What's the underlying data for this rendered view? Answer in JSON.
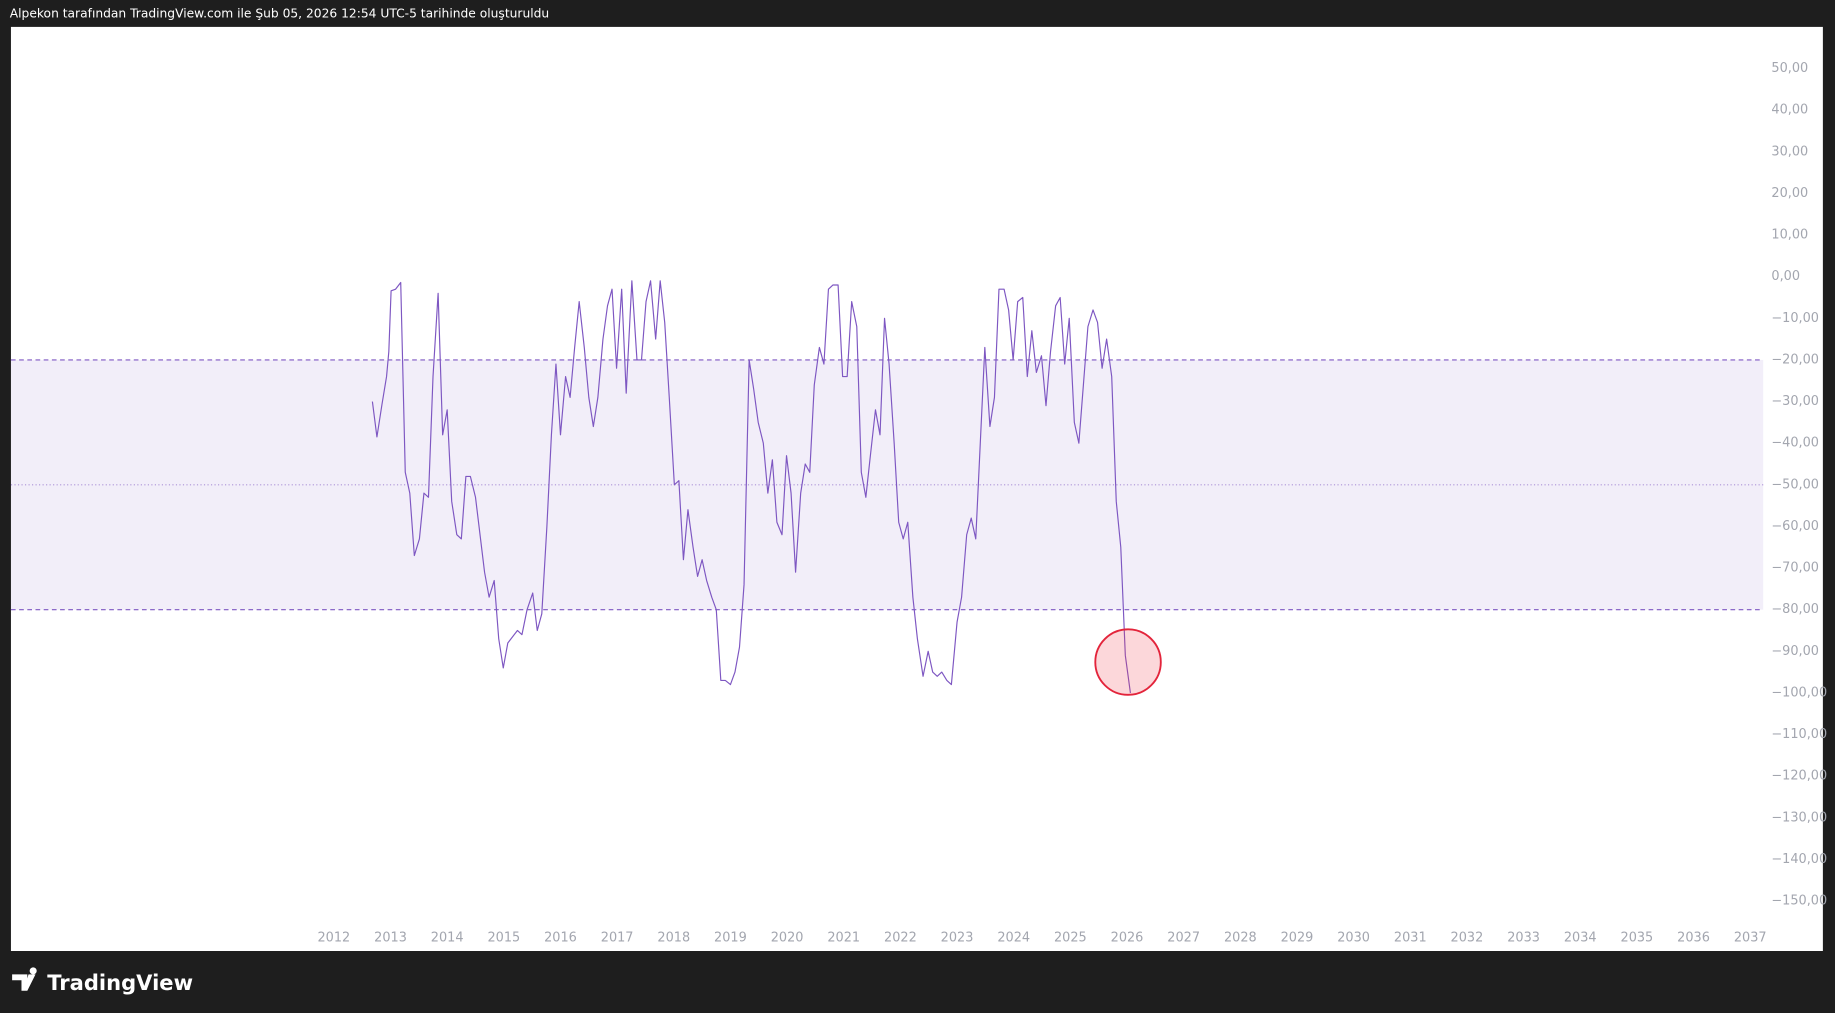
{
  "header": "Alpekon tarafından TradingView.com ile Şub 05, 2026 12:54 UTC-5 tarihinde oluşturuldu",
  "logo": "TradingView",
  "chart_data": {
    "type": "line",
    "color": "#7e57c2",
    "band_color": "#7e57c2",
    "xlim": [
      2006.3,
      2037.23
    ],
    "ylim": [
      -162,
      60
    ],
    "xticks": [
      2012,
      2013,
      2014,
      2015,
      2016,
      2017,
      2018,
      2019,
      2020,
      2021,
      2022,
      2023,
      2024,
      2025,
      2026,
      2027,
      2028,
      2029,
      2030,
      2031,
      2032,
      2033,
      2034,
      2035,
      2036,
      2037
    ],
    "yticks": [
      {
        "value": 50,
        "label": "50,00"
      },
      {
        "value": 40,
        "label": "40,00"
      },
      {
        "value": 30,
        "label": "30,00"
      },
      {
        "value": 20,
        "label": "20,00"
      },
      {
        "value": 10,
        "label": "10,00"
      },
      {
        "value": 0,
        "label": "0,00"
      },
      {
        "value": -10,
        "label": "−10,00"
      },
      {
        "value": -20,
        "label": "−20,00"
      },
      {
        "value": -30,
        "label": "−30,00"
      },
      {
        "value": -40,
        "label": "−40,00"
      },
      {
        "value": -50,
        "label": "−50,00"
      },
      {
        "value": -60,
        "label": "−60,00"
      },
      {
        "value": -70,
        "label": "−70,00"
      },
      {
        "value": -80,
        "label": "−80,00"
      },
      {
        "value": -90,
        "label": "−90,00"
      },
      {
        "value": -100,
        "label": "−100,00"
      },
      {
        "value": -110,
        "label": "−110,00"
      },
      {
        "value": -120,
        "label": "−120,00"
      },
      {
        "value": -130,
        "label": "−130,00"
      },
      {
        "value": -140,
        "label": "−140,00"
      },
      {
        "value": -150,
        "label": "−150,00"
      }
    ],
    "bands": [
      -20,
      -80
    ],
    "midline": -50,
    "x": [
      2012.68,
      2012.76,
      2012.85,
      2012.93,
      2012.97,
      2013.01,
      2013.09,
      2013.18,
      2013.26,
      2013.34,
      2013.42,
      2013.51,
      2013.59,
      2013.67,
      2013.75,
      2013.84,
      2013.92,
      2014.0,
      2014.08,
      2014.17,
      2014.25,
      2014.33,
      2014.41,
      2014.5,
      2014.66,
      2014.74,
      2014.83,
      2014.91,
      2014.99,
      2015.07,
      2015.24,
      2015.32,
      2015.41,
      2015.51,
      2015.59,
      2015.67,
      2015.76,
      2015.84,
      2015.92,
      2016.0,
      2016.09,
      2016.17,
      2016.25,
      2016.33,
      2016.42,
      2016.5,
      2016.58,
      2016.66,
      2016.75,
      2016.83,
      2016.91,
      2016.99,
      2017.08,
      2017.16,
      2017.26,
      2017.35,
      2017.43,
      2017.51,
      2017.59,
      2017.68,
      2017.76,
      2017.84,
      2017.92,
      2018.01,
      2018.09,
      2018.17,
      2018.25,
      2018.34,
      2018.42,
      2018.5,
      2018.58,
      2018.67,
      2018.75,
      2018.83,
      2018.91,
      2019.0,
      2019.08,
      2019.16,
      2019.24,
      2019.33,
      2019.41,
      2019.49,
      2019.58,
      2019.66,
      2019.74,
      2019.82,
      2019.91,
      2019.99,
      2020.07,
      2020.15,
      2020.24,
      2020.32,
      2020.4,
      2020.48,
      2020.57,
      2020.65,
      2020.73,
      2020.81,
      2020.9,
      2020.98,
      2021.06,
      2021.14,
      2021.23,
      2021.31,
      2021.39,
      2021.47,
      2021.56,
      2021.64,
      2021.72,
      2021.8,
      2021.89,
      2021.97,
      2022.05,
      2022.13,
      2022.22,
      2022.3,
      2022.4,
      2022.49,
      2022.57,
      2022.65,
      2022.73,
      2022.82,
      2022.9,
      2023.0,
      2023.08,
      2023.17,
      2023.25,
      2023.33,
      2023.41,
      2023.49,
      2023.58,
      2023.66,
      2023.74,
      2023.83,
      2023.91,
      2023.99,
      2024.07,
      2024.16,
      2024.24,
      2024.32,
      2024.4,
      2024.49,
      2024.57,
      2024.65,
      2024.74,
      2024.82,
      2024.9,
      2024.98,
      2025.07,
      2025.15,
      2025.23,
      2025.31,
      2025.4,
      2025.48,
      2025.56,
      2025.64,
      2025.73,
      2025.81,
      2025.89,
      2025.97,
      2026.06
    ],
    "values": [
      -30,
      -38.5,
      -30.6,
      -24,
      -18,
      -3.4,
      -3,
      -1.4,
      -47,
      -52,
      -67,
      -63,
      -52,
      -53,
      -24,
      -4,
      -38,
      -32,
      -54,
      -62,
      -63,
      -48,
      -48,
      -53,
      -71,
      -77,
      -73,
      -87,
      -94,
      -88,
      -85,
      -86,
      -80,
      -76,
      -85,
      -81,
      -60,
      -38,
      -21,
      -38,
      -24,
      -29,
      -17,
      -6,
      -17,
      -29,
      -36,
      -29,
      -15,
      -7,
      -3,
      -22,
      -3,
      -28,
      -1,
      -20,
      -20,
      -6,
      -1,
      -15,
      -1,
      -11,
      -29,
      -50,
      -49,
      -68,
      -56,
      -65,
      -72,
      -68,
      -73,
      -77,
      -80,
      -97,
      -97,
      -98,
      -95,
      -89,
      -74,
      -20,
      -27,
      -35,
      -40,
      -52,
      -44,
      -59,
      -62,
      -43,
      -52,
      -71,
      -52,
      -45,
      -47,
      -26,
      -17,
      -21,
      -3,
      -2,
      -2,
      -24,
      -24,
      -6,
      -12,
      -47,
      -53,
      -43,
      -32,
      -38,
      -10,
      -21,
      -40,
      -59,
      -63,
      -59,
      -77,
      -87,
      -96,
      -90,
      -95,
      -96,
      -95,
      -97,
      -98,
      -83,
      -77,
      -62,
      -58,
      -63,
      -40,
      -17,
      -36,
      -29,
      -3,
      -3,
      -8,
      -20,
      -6,
      -5,
      -24,
      -13,
      -23,
      -19,
      -31,
      -18,
      -7,
      -5,
      -21,
      -10,
      -35,
      -40,
      -26,
      -12,
      -8,
      -11,
      -22,
      -15,
      -24,
      -54,
      -65,
      -91,
      -100
    ]
  }
}
